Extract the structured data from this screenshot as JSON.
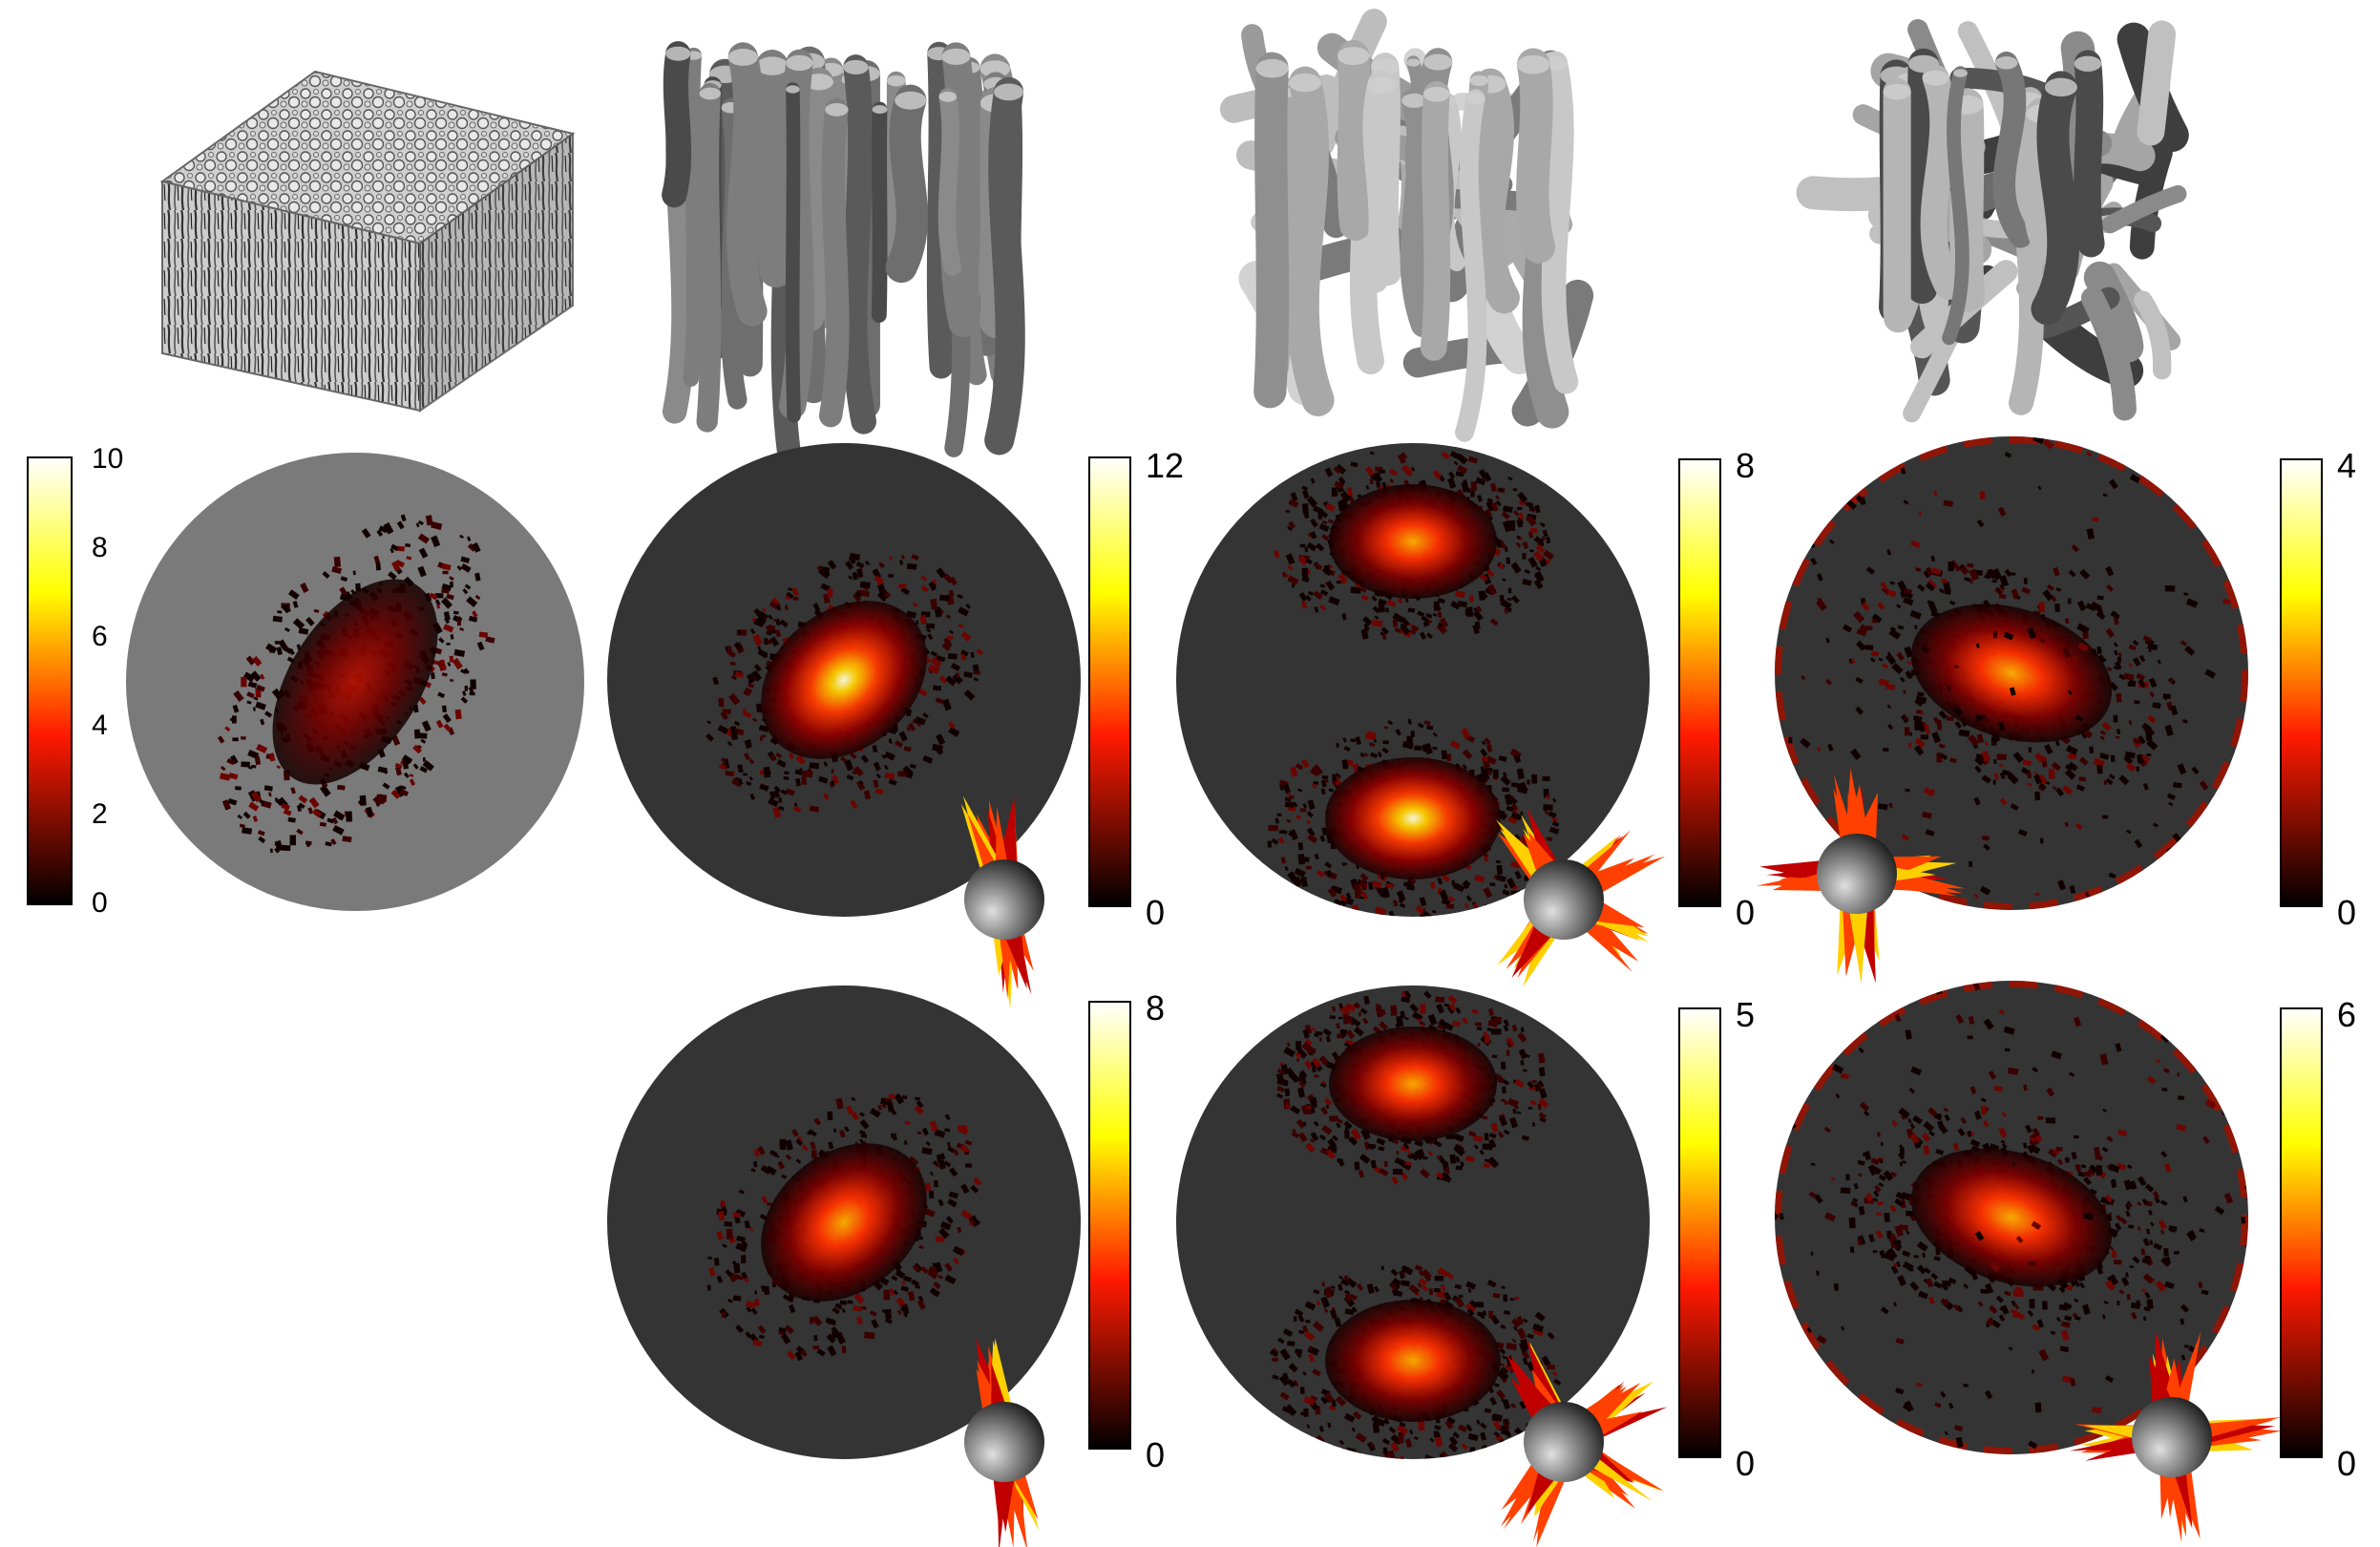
{
  "colors": {
    "disc_light": "#7a7a7a",
    "disc_dark": "#343434",
    "heat_low": "#000000",
    "heat_mid": "#ff2000",
    "heat_high": "#ffff00",
    "heat_max": "#ffffff"
  },
  "cube_panels": [
    {
      "name": "tissue-block-render"
    },
    {
      "name": "aligned-fibres-render"
    },
    {
      "name": "two-population-fibres-render"
    },
    {
      "name": "three-population-fibres-render"
    }
  ],
  "colorbars": [
    {
      "name": "colorbar-row1-col1",
      "ticks": [
        "10",
        "8",
        "6",
        "4",
        "2",
        "0"
      ]
    },
    {
      "name": "colorbar-row1-col2",
      "ticks": [
        "12",
        "0"
      ]
    },
    {
      "name": "colorbar-row1-col3",
      "ticks": [
        "8",
        "0"
      ]
    },
    {
      "name": "colorbar-row1-col4",
      "ticks": [
        "4",
        "0"
      ]
    },
    {
      "name": "colorbar-row2-col2",
      "ticks": [
        "8",
        "0"
      ]
    },
    {
      "name": "colorbar-row2-col3",
      "ticks": [
        "5",
        "0"
      ]
    },
    {
      "name": "colorbar-row2-col4",
      "ticks": [
        "6",
        "0"
      ]
    }
  ],
  "orientation_maps": [
    {
      "name": "orientation-map-row1-col1",
      "disc": "light",
      "blobs": [
        {
          "shape": "elongated",
          "intensity": 0.35
        }
      ]
    },
    {
      "name": "orientation-map-row1-col2",
      "disc": "dark",
      "glyph": true,
      "blobs": [
        {
          "shape": "center",
          "intensity": 0.95
        }
      ]
    },
    {
      "name": "orientation-map-row1-col3",
      "disc": "dark",
      "glyph": true,
      "blobs": [
        {
          "shape": "top",
          "intensity": 0.8
        },
        {
          "shape": "bottom",
          "intensity": 0.9
        }
      ]
    },
    {
      "name": "orientation-map-row1-col4",
      "disc": "dark",
      "glyph": true,
      "rim": true,
      "blobs": [
        {
          "shape": "center",
          "intensity": 0.7
        }
      ]
    },
    {
      "name": "orientation-map-row2-col2",
      "disc": "dark",
      "glyph": true,
      "blobs": [
        {
          "shape": "center",
          "intensity": 0.85
        }
      ]
    },
    {
      "name": "orientation-map-row2-col3",
      "disc": "dark",
      "glyph": true,
      "blobs": [
        {
          "shape": "top",
          "intensity": 0.85
        },
        {
          "shape": "bottom",
          "intensity": 0.85
        }
      ]
    },
    {
      "name": "orientation-map-row2-col4",
      "disc": "dark",
      "glyph": true,
      "rim": true,
      "blobs": [
        {
          "shape": "center",
          "intensity": 0.7
        }
      ]
    }
  ]
}
